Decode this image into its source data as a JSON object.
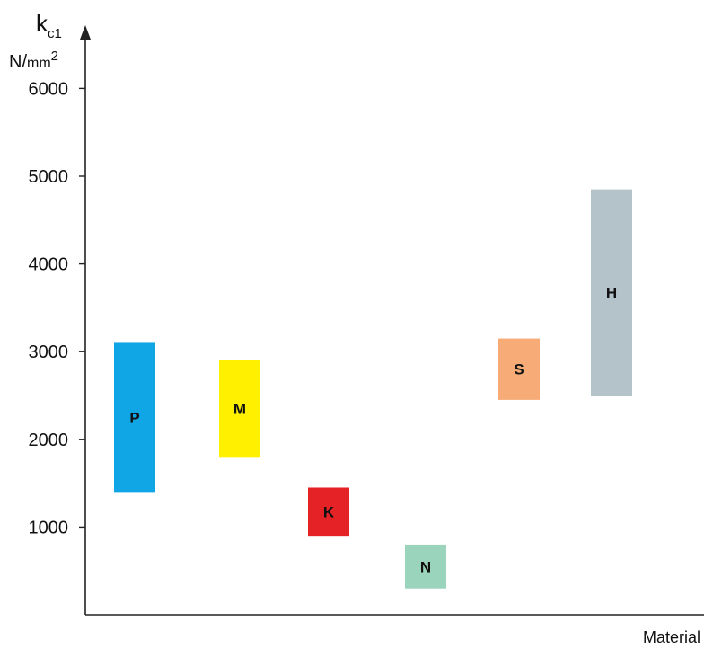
{
  "chart_data": {
    "type": "bar",
    "subtype": "floating-range",
    "title": "",
    "ylabel": {
      "main": "k",
      "subscript": "c1",
      "unit_prefix": "N/",
      "unit_base": "mm",
      "unit_exponent": "2"
    },
    "xlabel": "Material",
    "ylim": [
      0,
      6000
    ],
    "yticks": [
      "1000",
      "2000",
      "3000",
      "4000",
      "5000",
      "6000"
    ],
    "grid": false,
    "categories": [
      "P",
      "M",
      "K",
      "N",
      "S",
      "H"
    ],
    "ranges": [
      {
        "label": "P",
        "low": 1400,
        "high": 3100,
        "color": "#10a5e4"
      },
      {
        "label": "M",
        "low": 1800,
        "high": 2900,
        "color": "#fff000"
      },
      {
        "label": "K",
        "low": 900,
        "high": 1450,
        "color": "#e52326"
      },
      {
        "label": "N",
        "low": 300,
        "high": 800,
        "color": "#9bd4bd"
      },
      {
        "label": "S",
        "low": 2450,
        "high": 3150,
        "color": "#f7ab77"
      },
      {
        "label": "H",
        "low": 2500,
        "high": 4850,
        "color": "#b4c2c9"
      }
    ]
  }
}
